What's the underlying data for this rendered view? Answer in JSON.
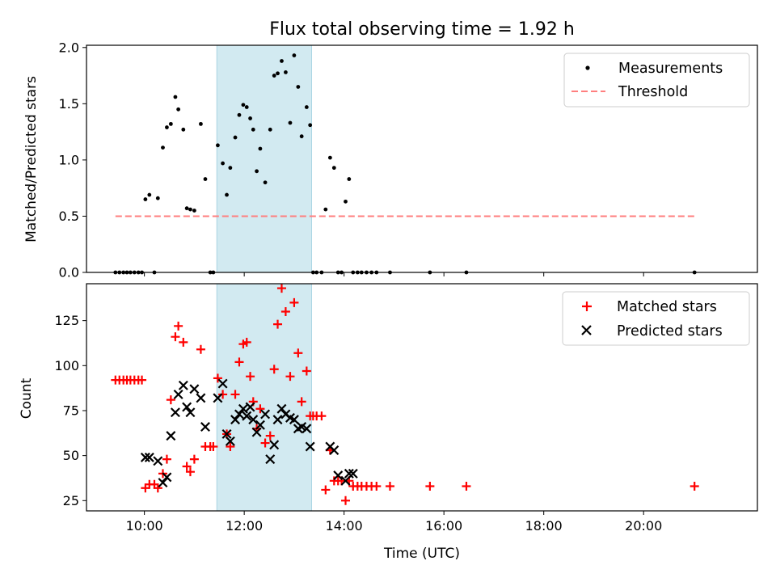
{
  "chart_data": [
    {
      "type": "scatter",
      "title": "Flux total observing time = 1.92 h",
      "xlabel": "",
      "ylabel": "Matched/Predicted stars",
      "xlim": [
        8.84,
        22.28
      ],
      "ylim": [
        0,
        2.02
      ],
      "yticks": [
        0.0,
        0.5,
        1.0,
        1.5,
        2.0
      ],
      "yticklabels": [
        "0.0",
        "0.5",
        "1.0",
        "1.5",
        "2.0"
      ],
      "highlight_span": [
        11.45,
        13.35
      ],
      "legend": {
        "placement": "top-right",
        "entries": [
          "Measurements",
          "Threshold"
        ]
      },
      "series": [
        {
          "name": "Measurements",
          "marker": "dot",
          "color": "#000000",
          "x": [
            9.42,
            9.5,
            9.58,
            9.65,
            9.72,
            9.8,
            9.88,
            9.95,
            10.02,
            10.1,
            10.2,
            10.27,
            10.37,
            10.45,
            10.53,
            10.62,
            10.68,
            10.78,
            10.85,
            10.92,
            11.0,
            11.13,
            11.22,
            11.32,
            11.38,
            11.47,
            11.57,
            11.65,
            11.72,
            11.82,
            11.9,
            11.98,
            12.05,
            12.12,
            12.18,
            12.25,
            12.32,
            12.42,
            12.52,
            12.6,
            12.67,
            12.75,
            12.83,
            12.92,
            13.0,
            13.08,
            13.15,
            13.25,
            13.32,
            13.38,
            13.45,
            13.55,
            13.63,
            13.72,
            13.8,
            13.88,
            13.95,
            14.03,
            14.1,
            14.18,
            14.27,
            14.35,
            14.45,
            14.55,
            14.65,
            14.92,
            15.72,
            16.45,
            21.02
          ],
          "y": [
            0,
            0,
            0,
            0,
            0,
            0,
            0,
            0,
            0.65,
            0.69,
            0,
            0.66,
            1.11,
            1.29,
            1.32,
            1.56,
            1.45,
            1.27,
            0.57,
            0.56,
            0.55,
            1.32,
            0.83,
            0,
            0,
            1.13,
            0.97,
            0.69,
            0.93,
            1.2,
            1.4,
            1.49,
            1.47,
            1.37,
            1.27,
            0.9,
            1.1,
            0.8,
            1.27,
            1.75,
            1.77,
            1.88,
            1.78,
            1.33,
            1.93,
            1.65,
            1.21,
            1.47,
            1.31,
            0,
            0,
            0,
            0.56,
            1.02,
            0.93,
            0,
            0,
            0.63,
            0.83,
            0,
            0,
            0,
            0,
            0,
            0,
            0,
            0,
            0,
            0
          ]
        },
        {
          "name": "Threshold",
          "marker": "dashed-line",
          "color": "#ff7f7f",
          "x": [
            9.42,
            21.02
          ],
          "y": [
            0.5,
            0.5
          ]
        }
      ]
    },
    {
      "type": "scatter",
      "title": "",
      "xlabel": "Time (UTC)",
      "ylabel": "Count",
      "xlim": [
        8.84,
        22.28
      ],
      "ylim": [
        19.3,
        145.5
      ],
      "yticks": [
        25,
        50,
        75,
        100,
        125
      ],
      "yticklabels": [
        "25",
        "50",
        "75",
        "100",
        "125"
      ],
      "xticks": [
        10,
        12,
        14,
        16,
        18,
        20
      ],
      "xticklabels": [
        "10:00",
        "12:00",
        "14:00",
        "16:00",
        "18:00",
        "20:00"
      ],
      "highlight_span": [
        11.45,
        13.35
      ],
      "legend": {
        "placement": "top-right",
        "entries": [
          "Matched stars",
          "Predicted stars"
        ]
      },
      "series": [
        {
          "name": "Matched stars",
          "marker": "plus",
          "color": "#ff0000",
          "x": [
            9.42,
            9.5,
            9.58,
            9.65,
            9.72,
            9.8,
            9.88,
            9.95,
            10.02,
            10.1,
            10.2,
            10.27,
            10.37,
            10.45,
            10.53,
            10.62,
            10.68,
            10.78,
            10.85,
            10.92,
            11.0,
            11.13,
            11.22,
            11.32,
            11.38,
            11.47,
            11.57,
            11.65,
            11.72,
            11.82,
            11.9,
            11.98,
            12.05,
            12.12,
            12.18,
            12.25,
            12.32,
            12.42,
            12.52,
            12.6,
            12.67,
            12.75,
            12.83,
            12.92,
            13.0,
            13.08,
            13.15,
            13.25,
            13.32,
            13.38,
            13.45,
            13.55,
            13.63,
            13.72,
            13.8,
            13.88,
            13.95,
            14.03,
            14.1,
            14.18,
            14.27,
            14.35,
            14.45,
            14.55,
            14.65,
            14.92,
            15.72,
            16.45,
            21.02
          ],
          "y": [
            92,
            92,
            92,
            92,
            92,
            92,
            92,
            92,
            32,
            34,
            34,
            32,
            40,
            48,
            81,
            116,
            122,
            113,
            44,
            41,
            48,
            109,
            55,
            55,
            55,
            93,
            84,
            62,
            55,
            84,
            102,
            112,
            113,
            94,
            80,
            65,
            76,
            57,
            61,
            98,
            123,
            143,
            130,
            94,
            135,
            107,
            80,
            97,
            72,
            72,
            72,
            72,
            31,
            53,
            36,
            36,
            36,
            25,
            36,
            33,
            33,
            33,
            33,
            33,
            33,
            33,
            33,
            33,
            33
          ]
        },
        {
          "name": "Predicted stars",
          "marker": "x",
          "color": "#000000",
          "x": [
            10.02,
            10.1,
            10.27,
            10.37,
            10.45,
            10.53,
            10.62,
            10.68,
            10.78,
            10.85,
            10.92,
            11.0,
            11.13,
            11.22,
            11.47,
            11.57,
            11.65,
            11.72,
            11.82,
            11.9,
            11.98,
            12.05,
            12.12,
            12.18,
            12.25,
            12.32,
            12.42,
            12.52,
            12.6,
            12.67,
            12.75,
            12.83,
            12.92,
            13.0,
            13.08,
            13.15,
            13.25,
            13.32,
            13.72,
            13.8,
            13.88,
            14.03,
            14.1,
            14.18
          ],
          "y": [
            49,
            49,
            47,
            35,
            38,
            61,
            74,
            84,
            89,
            77,
            74,
            87,
            82,
            66,
            82,
            90,
            62,
            58,
            70,
            73,
            76,
            72,
            77,
            70,
            63,
            67,
            73,
            48,
            56,
            70,
            76,
            73,
            71,
            70,
            65,
            66,
            65,
            55,
            55,
            53,
            39,
            36,
            40,
            40
          ]
        }
      ]
    }
  ]
}
